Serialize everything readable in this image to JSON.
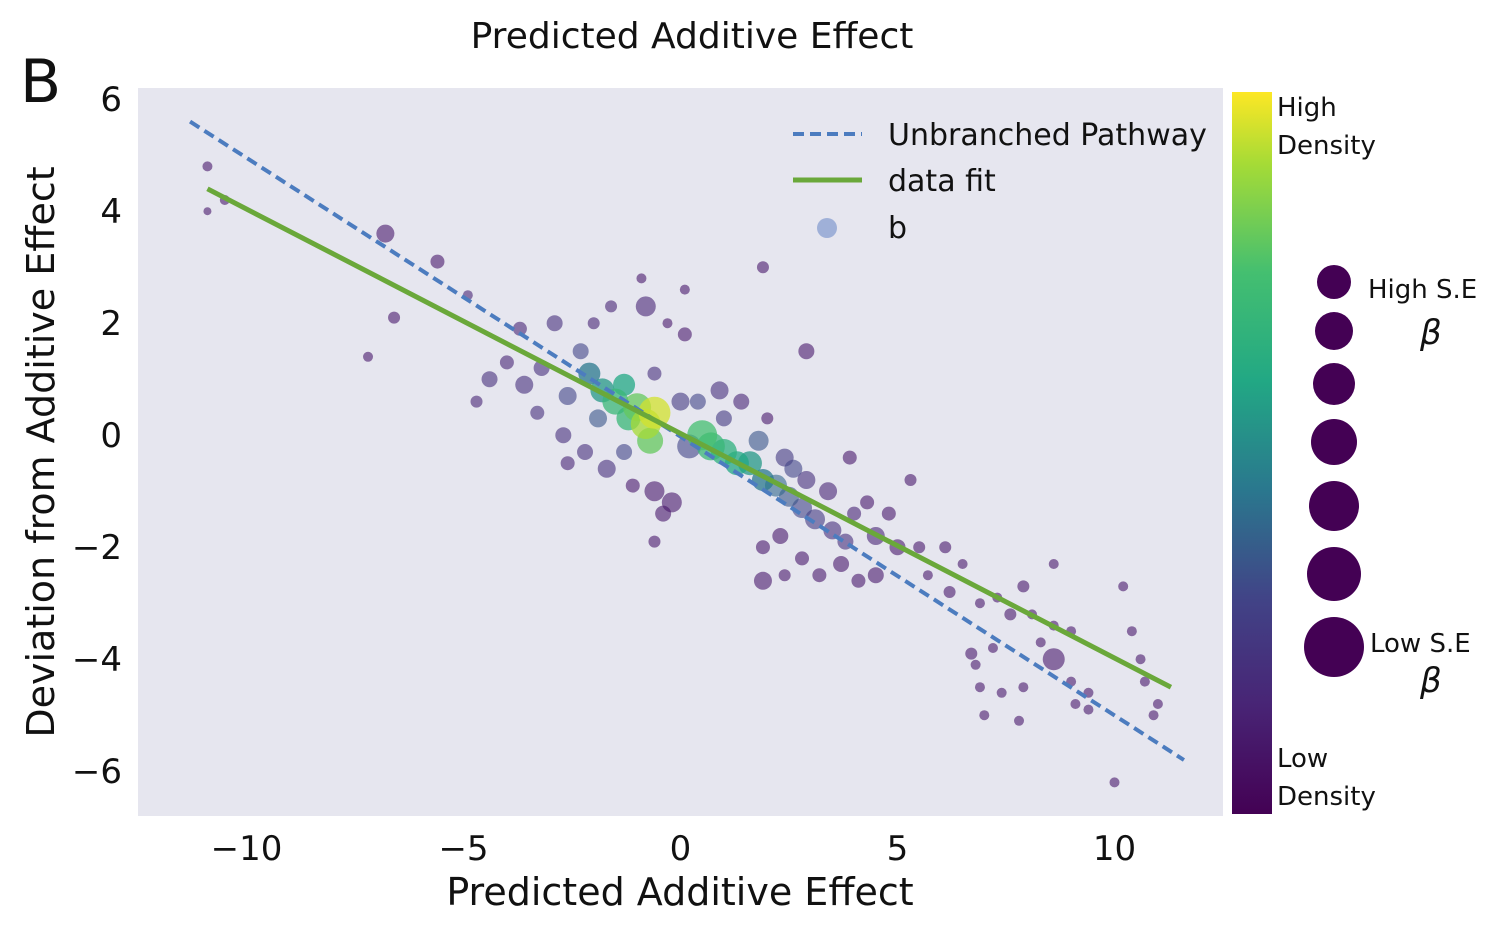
{
  "panel_label": "B",
  "colors": {
    "plot_bg": "#e6e6ef",
    "dashed_line": "#4c7cbf",
    "fit_line": "#6aa83a",
    "legend_marker": "#9fb0d8",
    "dot_low": "#440154",
    "dot_high": "#fde725"
  },
  "legend": {
    "unbranched": "Unbranched Pathway",
    "fit": "data fit",
    "points": "b"
  },
  "colorbar": {
    "top_label_1": "High",
    "top_label_2": "Density",
    "bottom_label_1": "Low",
    "bottom_label_2": "Density",
    "colormap": "viridis"
  },
  "size_legend": {
    "high_label": "High S.E",
    "low_label": "Low S.E",
    "symbol": "β",
    "count": 7
  },
  "chart_data": {
    "type": "scatter",
    "title": "Predicted Additive Effect",
    "xlabel": "Predicted Additive Effect",
    "ylabel": "Deviation from Additive Effect",
    "xlim": [
      -12.5,
      12.5
    ],
    "ylim": [
      -6.8,
      6.2
    ],
    "xticks": [
      -10,
      -5,
      0,
      5,
      10
    ],
    "yticks": [
      6,
      4,
      2,
      0,
      -2,
      -4,
      -6
    ],
    "xtick_labels": [
      "−10",
      "−5",
      "0",
      "5",
      "10"
    ],
    "ytick_labels": [
      "6",
      "4",
      "2",
      "0",
      "−2",
      "−4",
      "−6"
    ],
    "grid": false,
    "legend_position": "top-right",
    "series": [
      {
        "name": "Unbranched Pathway",
        "kind": "line",
        "style": "dashed",
        "x": [
          -11.3,
          11.6
        ],
        "y": [
          5.6,
          -5.8
        ]
      },
      {
        "name": "data fit",
        "kind": "line",
        "style": "solid",
        "x": [
          -10.9,
          11.3
        ],
        "y": [
          4.4,
          -4.5
        ]
      },
      {
        "name": "b",
        "kind": "scatter",
        "points": [
          {
            "x": -10.9,
            "y": 4.8,
            "d": 0.1,
            "s": 5
          },
          {
            "x": -10.9,
            "y": 4.0,
            "d": 0.1,
            "s": 4
          },
          {
            "x": -10.5,
            "y": 4.2,
            "d": 0.1,
            "s": 5
          },
          {
            "x": -6.8,
            "y": 3.6,
            "d": 0.1,
            "s": 9
          },
          {
            "x": -5.6,
            "y": 3.1,
            "d": 0.1,
            "s": 7
          },
          {
            "x": -6.6,
            "y": 2.1,
            "d": 0.1,
            "s": 6
          },
          {
            "x": -7.2,
            "y": 1.4,
            "d": 0.1,
            "s": 5
          },
          {
            "x": -4.9,
            "y": 2.5,
            "d": 0.15,
            "s": 5
          },
          {
            "x": -3.7,
            "y": 1.9,
            "d": 0.15,
            "s": 7
          },
          {
            "x": -4.0,
            "y": 1.3,
            "d": 0.15,
            "s": 7
          },
          {
            "x": -3.6,
            "y": 0.9,
            "d": 0.2,
            "s": 9
          },
          {
            "x": -3.2,
            "y": 1.2,
            "d": 0.2,
            "s": 8
          },
          {
            "x": -3.3,
            "y": 0.4,
            "d": 0.2,
            "s": 7
          },
          {
            "x": -4.7,
            "y": 0.6,
            "d": 0.15,
            "s": 6
          },
          {
            "x": -4.4,
            "y": 1.0,
            "d": 0.2,
            "s": 8
          },
          {
            "x": -2.9,
            "y": 2.0,
            "d": 0.2,
            "s": 8
          },
          {
            "x": -2.6,
            "y": 0.7,
            "d": 0.3,
            "s": 9
          },
          {
            "x": -2.7,
            "y": 0.0,
            "d": 0.2,
            "s": 8
          },
          {
            "x": -2.6,
            "y": -0.5,
            "d": 0.15,
            "s": 7
          },
          {
            "x": -2.3,
            "y": 1.5,
            "d": 0.3,
            "s": 8
          },
          {
            "x": -2.1,
            "y": 1.1,
            "d": 0.45,
            "s": 11
          },
          {
            "x": -1.8,
            "y": 0.8,
            "d": 0.55,
            "s": 12
          },
          {
            "x": -1.9,
            "y": 0.3,
            "d": 0.35,
            "s": 9
          },
          {
            "x": -1.5,
            "y": 0.6,
            "d": 0.7,
            "s": 13
          },
          {
            "x": -1.3,
            "y": 0.9,
            "d": 0.6,
            "s": 11
          },
          {
            "x": -1.2,
            "y": 0.3,
            "d": 0.7,
            "s": 12
          },
          {
            "x": -1.0,
            "y": 0.5,
            "d": 0.8,
            "s": 14
          },
          {
            "x": -0.8,
            "y": 0.2,
            "d": 0.9,
            "s": 15
          },
          {
            "x": -0.6,
            "y": 0.4,
            "d": 0.95,
            "s": 16
          },
          {
            "x": -0.7,
            "y": -0.1,
            "d": 0.8,
            "s": 13
          },
          {
            "x": -2.2,
            "y": -0.3,
            "d": 0.2,
            "s": 8
          },
          {
            "x": -1.7,
            "y": -0.6,
            "d": 0.2,
            "s": 9
          },
          {
            "x": -1.3,
            "y": -0.3,
            "d": 0.3,
            "s": 8
          },
          {
            "x": -2.0,
            "y": 2.0,
            "d": 0.15,
            "s": 6
          },
          {
            "x": -1.6,
            "y": 2.3,
            "d": 0.15,
            "s": 6
          },
          {
            "x": -0.9,
            "y": 2.8,
            "d": 0.1,
            "s": 5
          },
          {
            "x": -0.8,
            "y": 2.3,
            "d": 0.15,
            "s": 10
          },
          {
            "x": -0.3,
            "y": 2.0,
            "d": 0.1,
            "s": 5
          },
          {
            "x": 0.1,
            "y": 2.6,
            "d": 0.1,
            "s": 5
          },
          {
            "x": 0.1,
            "y": 1.8,
            "d": 0.1,
            "s": 7
          },
          {
            "x": -0.6,
            "y": 1.1,
            "d": 0.2,
            "s": 7
          },
          {
            "x": 0.0,
            "y": 0.6,
            "d": 0.25,
            "s": 9
          },
          {
            "x": 0.4,
            "y": 0.6,
            "d": 0.3,
            "s": 8
          },
          {
            "x": 0.9,
            "y": 0.8,
            "d": 0.2,
            "s": 9
          },
          {
            "x": 1.0,
            "y": 0.3,
            "d": 0.25,
            "s": 8
          },
          {
            "x": 0.2,
            "y": -0.2,
            "d": 0.3,
            "s": 12
          },
          {
            "x": 0.5,
            "y": 0.0,
            "d": 0.75,
            "s": 15
          },
          {
            "x": 0.7,
            "y": -0.2,
            "d": 0.7,
            "s": 14
          },
          {
            "x": 1.0,
            "y": -0.3,
            "d": 0.65,
            "s": 13
          },
          {
            "x": 1.3,
            "y": -0.5,
            "d": 0.6,
            "s": 12
          },
          {
            "x": 1.6,
            "y": -0.5,
            "d": 0.55,
            "s": 12
          },
          {
            "x": 1.9,
            "y": -0.8,
            "d": 0.45,
            "s": 11
          },
          {
            "x": 2.2,
            "y": -0.9,
            "d": 0.4,
            "s": 11
          },
          {
            "x": 2.5,
            "y": -1.1,
            "d": 0.35,
            "s": 10
          },
          {
            "x": 2.8,
            "y": -1.3,
            "d": 0.3,
            "s": 10
          },
          {
            "x": 3.1,
            "y": -1.5,
            "d": 0.25,
            "s": 10
          },
          {
            "x": 1.8,
            "y": -0.1,
            "d": 0.35,
            "s": 10
          },
          {
            "x": 2.4,
            "y": -0.4,
            "d": 0.25,
            "s": 9
          },
          {
            "x": 2.6,
            "y": -0.6,
            "d": 0.3,
            "s": 9
          },
          {
            "x": 2.9,
            "y": -0.8,
            "d": 0.2,
            "s": 9
          },
          {
            "x": 1.4,
            "y": 0.6,
            "d": 0.15,
            "s": 8
          },
          {
            "x": 2.0,
            "y": 0.3,
            "d": 0.1,
            "s": 6
          },
          {
            "x": 1.9,
            "y": 3.0,
            "d": 0.1,
            "s": 6
          },
          {
            "x": 2.9,
            "y": 1.5,
            "d": 0.1,
            "s": 8
          },
          {
            "x": 3.9,
            "y": -0.4,
            "d": 0.1,
            "s": 7
          },
          {
            "x": 3.4,
            "y": -1.0,
            "d": 0.15,
            "s": 9
          },
          {
            "x": 3.5,
            "y": -1.7,
            "d": 0.2,
            "s": 9
          },
          {
            "x": 3.8,
            "y": -1.9,
            "d": 0.2,
            "s": 8
          },
          {
            "x": 4.0,
            "y": -1.4,
            "d": 0.15,
            "s": 7
          },
          {
            "x": 4.3,
            "y": -1.2,
            "d": 0.1,
            "s": 7
          },
          {
            "x": 4.5,
            "y": -1.8,
            "d": 0.15,
            "s": 9
          },
          {
            "x": 4.8,
            "y": -1.4,
            "d": 0.1,
            "s": 7
          },
          {
            "x": 5.3,
            "y": -0.8,
            "d": 0.1,
            "s": 6
          },
          {
            "x": 5.0,
            "y": -2.0,
            "d": 0.1,
            "s": 8
          },
          {
            "x": 4.5,
            "y": -2.5,
            "d": 0.1,
            "s": 8
          },
          {
            "x": 4.1,
            "y": -2.6,
            "d": 0.1,
            "s": 7
          },
          {
            "x": 3.7,
            "y": -2.3,
            "d": 0.1,
            "s": 8
          },
          {
            "x": 3.2,
            "y": -2.5,
            "d": 0.1,
            "s": 7
          },
          {
            "x": 2.8,
            "y": -2.2,
            "d": 0.1,
            "s": 7
          },
          {
            "x": 2.3,
            "y": -1.8,
            "d": 0.1,
            "s": 8
          },
          {
            "x": 1.9,
            "y": -2.0,
            "d": 0.1,
            "s": 7
          },
          {
            "x": 2.4,
            "y": -2.5,
            "d": 0.1,
            "s": 6
          },
          {
            "x": 1.9,
            "y": -2.6,
            "d": 0.1,
            "s": 9
          },
          {
            "x": -1.1,
            "y": -0.9,
            "d": 0.1,
            "s": 7
          },
          {
            "x": -0.6,
            "y": -1.0,
            "d": 0.1,
            "s": 10
          },
          {
            "x": -0.4,
            "y": -1.4,
            "d": 0.1,
            "s": 8
          },
          {
            "x": -0.2,
            "y": -1.2,
            "d": 0.1,
            "s": 10
          },
          {
            "x": -0.6,
            "y": -1.9,
            "d": 0.1,
            "s": 6
          },
          {
            "x": 5.5,
            "y": -2.0,
            "d": 0.1,
            "s": 6
          },
          {
            "x": 6.1,
            "y": -2.0,
            "d": 0.1,
            "s": 6
          },
          {
            "x": 6.5,
            "y": -2.3,
            "d": 0.1,
            "s": 5
          },
          {
            "x": 5.7,
            "y": -2.5,
            "d": 0.1,
            "s": 5
          },
          {
            "x": 6.2,
            "y": -2.8,
            "d": 0.1,
            "s": 6
          },
          {
            "x": 6.9,
            "y": -3.0,
            "d": 0.1,
            "s": 5
          },
          {
            "x": 7.3,
            "y": -2.9,
            "d": 0.1,
            "s": 5
          },
          {
            "x": 7.6,
            "y": -3.2,
            "d": 0.1,
            "s": 6
          },
          {
            "x": 8.1,
            "y": -3.2,
            "d": 0.1,
            "s": 5
          },
          {
            "x": 8.6,
            "y": -3.4,
            "d": 0.1,
            "s": 5
          },
          {
            "x": 9.0,
            "y": -3.5,
            "d": 0.1,
            "s": 5
          },
          {
            "x": 7.2,
            "y": -3.8,
            "d": 0.1,
            "s": 5
          },
          {
            "x": 6.7,
            "y": -3.9,
            "d": 0.1,
            "s": 6
          },
          {
            "x": 8.3,
            "y": -3.7,
            "d": 0.1,
            "s": 5
          },
          {
            "x": 8.6,
            "y": -4.0,
            "d": 0.1,
            "s": 11
          },
          {
            "x": 7.9,
            "y": -2.7,
            "d": 0.1,
            "s": 6
          },
          {
            "x": 8.6,
            "y": -2.3,
            "d": 0.1,
            "s": 5
          },
          {
            "x": 6.8,
            "y": -4.1,
            "d": 0.1,
            "s": 5
          },
          {
            "x": 6.9,
            "y": -4.5,
            "d": 0.1,
            "s": 5
          },
          {
            "x": 7.4,
            "y": -4.6,
            "d": 0.1,
            "s": 5
          },
          {
            "x": 7.9,
            "y": -4.5,
            "d": 0.1,
            "s": 5
          },
          {
            "x": 7.0,
            "y": -5.0,
            "d": 0.1,
            "s": 5
          },
          {
            "x": 7.8,
            "y": -5.1,
            "d": 0.1,
            "s": 5
          },
          {
            "x": 9.0,
            "y": -4.4,
            "d": 0.1,
            "s": 5
          },
          {
            "x": 9.4,
            "y": -4.6,
            "d": 0.1,
            "s": 5
          },
          {
            "x": 9.1,
            "y": -4.8,
            "d": 0.1,
            "s": 5
          },
          {
            "x": 10.2,
            "y": -2.7,
            "d": 0.1,
            "s": 5
          },
          {
            "x": 10.4,
            "y": -3.5,
            "d": 0.1,
            "s": 5
          },
          {
            "x": 10.6,
            "y": -4.0,
            "d": 0.1,
            "s": 5
          },
          {
            "x": 10.7,
            "y": -4.4,
            "d": 0.1,
            "s": 5
          },
          {
            "x": 11.0,
            "y": -4.8,
            "d": 0.1,
            "s": 5
          },
          {
            "x": 10.9,
            "y": -5.0,
            "d": 0.1,
            "s": 5
          },
          {
            "x": 10.0,
            "y": -6.2,
            "d": 0.1,
            "s": 5
          },
          {
            "x": 9.4,
            "y": -4.9,
            "d": 0.1,
            "s": 5
          }
        ]
      }
    ]
  }
}
